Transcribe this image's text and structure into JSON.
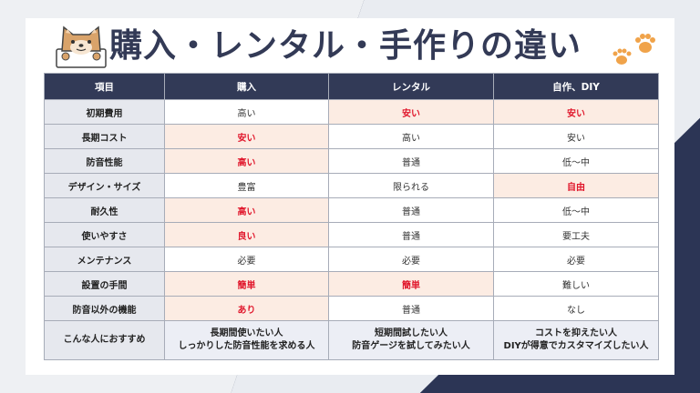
{
  "title": "購入・レンタル・手作りの違い",
  "colors": {
    "navy": "#323a57",
    "highlight_bg": "#fcece3",
    "highlight_text": "#e0162b",
    "dog": "#d9a36a",
    "paw": "#f0a34a"
  },
  "icons": {
    "mascot": "shiba-dog-icon",
    "paws": "paw-print-icon"
  },
  "table": {
    "headers": [
      "項目",
      "購入",
      "レンタル",
      "自作、DIY"
    ],
    "rows": [
      {
        "item": "初期費用",
        "cells": [
          {
            "text": "高い",
            "hl": false
          },
          {
            "text": "安い",
            "hl": true
          },
          {
            "text": "安い",
            "hl": true
          }
        ]
      },
      {
        "item": "長期コスト",
        "cells": [
          {
            "text": "安い",
            "hl": true
          },
          {
            "text": "高い",
            "hl": false
          },
          {
            "text": "安い",
            "hl": false
          }
        ]
      },
      {
        "item": "防音性能",
        "cells": [
          {
            "text": "高い",
            "hl": true
          },
          {
            "text": "普通",
            "hl": false
          },
          {
            "text": "低〜中",
            "hl": false
          }
        ]
      },
      {
        "item": "デザイン・サイズ",
        "cells": [
          {
            "text": "豊富",
            "hl": false
          },
          {
            "text": "限られる",
            "hl": false
          },
          {
            "text": "自由",
            "hl": true
          }
        ]
      },
      {
        "item": "耐久性",
        "cells": [
          {
            "text": "高い",
            "hl": true
          },
          {
            "text": "普通",
            "hl": false
          },
          {
            "text": "低〜中",
            "hl": false
          }
        ]
      },
      {
        "item": "使いやすさ",
        "cells": [
          {
            "text": "良い",
            "hl": true
          },
          {
            "text": "普通",
            "hl": false
          },
          {
            "text": "要工夫",
            "hl": false
          }
        ]
      },
      {
        "item": "メンテナンス",
        "cells": [
          {
            "text": "必要",
            "hl": false
          },
          {
            "text": "必要",
            "hl": false
          },
          {
            "text": "必要",
            "hl": false
          }
        ]
      },
      {
        "item": "設置の手間",
        "cells": [
          {
            "text": "簡単",
            "hl": true
          },
          {
            "text": "簡単",
            "hl": true
          },
          {
            "text": "難しい",
            "hl": false
          }
        ]
      },
      {
        "item": "防音以外の機能",
        "cells": [
          {
            "text": "あり",
            "hl": true
          },
          {
            "text": "普通",
            "hl": false
          },
          {
            "text": "なし",
            "hl": false
          }
        ]
      }
    ],
    "recommend": {
      "item": "こんな人におすすめ",
      "cells": [
        [
          "長期間使いたい人",
          "しっかりした防音性能を求める人"
        ],
        [
          "短期間試したい人",
          "防音ゲージを試してみたい人"
        ],
        [
          "コストを抑えたい人",
          "DIYが得意でカスタマイズしたい人"
        ]
      ]
    }
  }
}
